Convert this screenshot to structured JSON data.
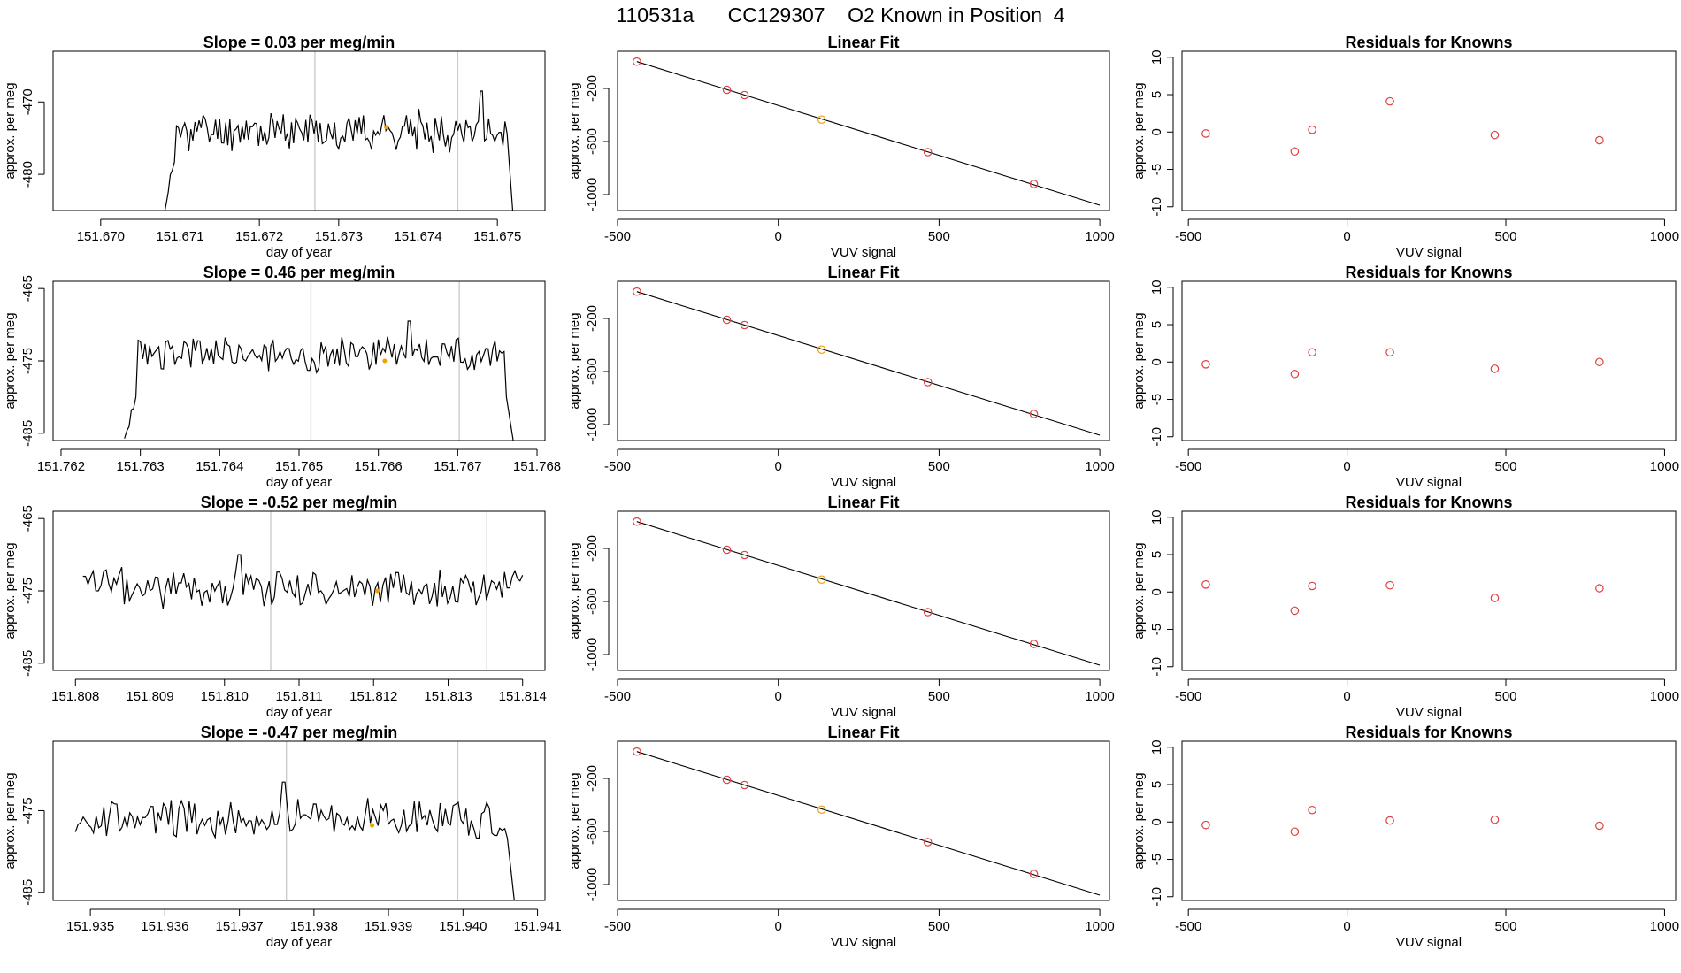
{
  "figure_title": "110531a      CC129307    O2 Known in Position  4",
  "colors": {
    "line": "#000000",
    "vline": "#cccccc",
    "known_point": "#e04040",
    "highlight_point": "#f0a000",
    "axis": "#000000"
  },
  "chart_data": [
    {
      "type": "line",
      "row": 0,
      "col": 0,
      "title": "Slope =  0.03  per meg/min",
      "xlabel": "day of year",
      "ylabel": "approx. per meg",
      "xlim": [
        151.6694,
        151.6756
      ],
      "ylim": [
        -485,
        -463
      ],
      "xticks": [
        151.67,
        151.671,
        151.672,
        151.673,
        151.674,
        151.675
      ],
      "xtick_labels": [
        "151.670",
        "151.671",
        "151.672",
        "151.673",
        "151.674",
        "151.675"
      ],
      "yticks": [
        -480,
        -470
      ],
      "ytick_labels": [
        "-480",
        "-470"
      ],
      "vlines": [
        151.6727,
        151.6745
      ],
      "x_start": 151.6708,
      "x_end": 151.6752,
      "y_mean": -474.0,
      "amp": 2.2,
      "seed": 11,
      "ramp_in": [
        -485,
        -476.5
      ],
      "ramp_out": [
        -470.5,
        -486
      ],
      "peaks": [
        [
          151.6748,
          -468.5
        ]
      ],
      "highlight": [
        151.6736,
        -473.5
      ]
    },
    {
      "type": "scatter",
      "row": 0,
      "col": 1,
      "title": "Linear Fit",
      "xlabel": "VUV signal",
      "ylabel": "approx. per meg",
      "xlim": [
        -500,
        1030
      ],
      "ylim": [
        -1120,
        80
      ],
      "xticks": [
        -500,
        0,
        500,
        1000
      ],
      "xtick_labels": [
        "-500",
        "0",
        "500",
        "1000"
      ],
      "yticks": [
        -1000,
        -600,
        -200
      ],
      "ytick_labels": [
        "-1000",
        "-600",
        "-200"
      ],
      "fit_line": {
        "x": [
          -440,
          1000
        ],
        "y": [
          2,
          -1080
        ]
      },
      "points": [
        [
          -440,
          2
        ],
        [
          -160,
          -210
        ],
        [
          -105,
          -250
        ],
        [
          135,
          -435
        ],
        [
          465,
          -680
        ],
        [
          795,
          -920
        ]
      ],
      "highlight_index": 3
    },
    {
      "type": "scatter",
      "row": 0,
      "col": 2,
      "title": "Residuals for Knowns",
      "xlabel": "VUV signal",
      "ylabel": "approx. per meg",
      "xlim": [
        -520,
        1035
      ],
      "ylim": [
        -10.5,
        10.8
      ],
      "xticks": [
        -500,
        0,
        500,
        1000
      ],
      "xtick_labels": [
        "-500",
        "0",
        "500",
        "1000"
      ],
      "yticks": [
        -10,
        -5,
        0,
        5,
        10
      ],
      "ytick_labels": [
        "-10",
        "-5",
        "0",
        "5",
        "10"
      ],
      "points": [
        [
          -445,
          -0.2
        ],
        [
          -165,
          -2.6
        ],
        [
          -110,
          0.3
        ],
        [
          135,
          4.1
        ],
        [
          465,
          -0.4
        ],
        [
          795,
          -1.1
        ]
      ]
    },
    {
      "type": "line",
      "row": 1,
      "col": 0,
      "title": "Slope =  0.46  per meg/min",
      "xlabel": "day of year",
      "ylabel": "approx. per meg",
      "xlim": [
        151.7619,
        151.7681
      ],
      "ylim": [
        -486,
        -464
      ],
      "xticks": [
        151.762,
        151.763,
        151.764,
        151.765,
        151.766,
        151.767,
        151.768
      ],
      "xtick_labels": [
        "151.762",
        "151.763",
        "151.764",
        "151.765",
        "151.766",
        "151.767",
        "151.768"
      ],
      "yticks": [
        -485,
        -475,
        -465
      ],
      "ytick_labels": [
        "-485",
        "-475",
        "-465"
      ],
      "vlines": [
        151.76515,
        151.76702
      ],
      "x_start": 151.7628,
      "x_end": 151.7677,
      "y_mean": -474.0,
      "amp": 2.0,
      "seed": 23,
      "ramp_in": [
        -486,
        -478.5
      ],
      "ramp_out": [
        -478,
        -486
      ],
      "peaks": [
        [
          151.7664,
          -469.5
        ]
      ],
      "highlight": [
        151.76608,
        -475
      ]
    },
    {
      "type": "scatter",
      "row": 1,
      "col": 1,
      "title": "Linear Fit",
      "xlabel": "VUV signal",
      "ylabel": "approx. per meg",
      "xlim": [
        -500,
        1030
      ],
      "ylim": [
        -1120,
        80
      ],
      "xticks": [
        -500,
        0,
        500,
        1000
      ],
      "xtick_labels": [
        "-500",
        "0",
        "500",
        "1000"
      ],
      "yticks": [
        -1000,
        -600,
        -200
      ],
      "ytick_labels": [
        "-1000",
        "-600",
        "-200"
      ],
      "fit_line": {
        "x": [
          -440,
          1000
        ],
        "y": [
          2,
          -1080
        ]
      },
      "points": [
        [
          -440,
          2
        ],
        [
          -160,
          -210
        ],
        [
          -105,
          -250
        ],
        [
          135,
          -435
        ],
        [
          465,
          -680
        ],
        [
          795,
          -920
        ]
      ],
      "highlight_index": 3
    },
    {
      "type": "scatter",
      "row": 1,
      "col": 2,
      "title": "Residuals for Knowns",
      "xlabel": "VUV signal",
      "ylabel": "approx. per meg",
      "xlim": [
        -520,
        1035
      ],
      "ylim": [
        -10.5,
        10.8
      ],
      "xticks": [
        -500,
        0,
        500,
        1000
      ],
      "xtick_labels": [
        "-500",
        "0",
        "500",
        "1000"
      ],
      "yticks": [
        -10,
        -5,
        0,
        5,
        10
      ],
      "ytick_labels": [
        "-10",
        "-5",
        "0",
        "5",
        "10"
      ],
      "points": [
        [
          -445,
          -0.3
        ],
        [
          -165,
          -1.6
        ],
        [
          -110,
          1.3
        ],
        [
          135,
          1.3
        ],
        [
          465,
          -0.9
        ],
        [
          795,
          0.0
        ]
      ]
    },
    {
      "type": "line",
      "row": 2,
      "col": 0,
      "title": "Slope =  -0.52  per meg/min",
      "xlabel": "day of year",
      "ylabel": "approx. per meg",
      "xlim": [
        151.8077,
        151.8143
      ],
      "ylim": [
        -486,
        -464
      ],
      "xticks": [
        151.808,
        151.809,
        151.81,
        151.811,
        151.812,
        151.813,
        151.814
      ],
      "xtick_labels": [
        "151.808",
        "151.809",
        "151.810",
        "151.811",
        "151.812",
        "151.813",
        "151.814"
      ],
      "yticks": [
        -485,
        -475,
        -465
      ],
      "ytick_labels": [
        "-485",
        "-475",
        "-465"
      ],
      "vlines": [
        151.81062,
        151.81352
      ],
      "x_start": 151.8081,
      "x_end": 151.814,
      "y_mean": -474.5,
      "amp": 2.3,
      "seed": 37,
      "ramp_in": null,
      "ramp_out": null,
      "peaks": [
        [
          151.8102,
          -470.0
        ]
      ],
      "highlight": [
        151.81205,
        -475
      ]
    },
    {
      "type": "scatter",
      "row": 2,
      "col": 1,
      "title": "Linear Fit",
      "xlabel": "VUV signal",
      "ylabel": "approx. per meg",
      "xlim": [
        -500,
        1030
      ],
      "ylim": [
        -1120,
        80
      ],
      "xticks": [
        -500,
        0,
        500,
        1000
      ],
      "xtick_labels": [
        "-500",
        "0",
        "500",
        "1000"
      ],
      "yticks": [
        -1000,
        -600,
        -200
      ],
      "ytick_labels": [
        "-1000",
        "-600",
        "-200"
      ],
      "fit_line": {
        "x": [
          -440,
          1000
        ],
        "y": [
          2,
          -1080
        ]
      },
      "points": [
        [
          -440,
          2
        ],
        [
          -160,
          -210
        ],
        [
          -105,
          -250
        ],
        [
          135,
          -435
        ],
        [
          465,
          -680
        ],
        [
          795,
          -920
        ]
      ],
      "highlight_index": 3
    },
    {
      "type": "scatter",
      "row": 2,
      "col": 2,
      "title": "Residuals for Knowns",
      "xlabel": "VUV signal",
      "ylabel": "approx. per meg",
      "xlim": [
        -520,
        1035
      ],
      "ylim": [
        -10.5,
        10.8
      ],
      "xticks": [
        -500,
        0,
        500,
        1000
      ],
      "xtick_labels": [
        "-500",
        "0",
        "500",
        "1000"
      ],
      "yticks": [
        -10,
        -5,
        0,
        5,
        10
      ],
      "ytick_labels": [
        "-10",
        "-5",
        "0",
        "5",
        "10"
      ],
      "points": [
        [
          -445,
          1.0
        ],
        [
          -165,
          -2.5
        ],
        [
          -110,
          0.8
        ],
        [
          135,
          0.9
        ],
        [
          465,
          -0.8
        ],
        [
          795,
          0.5
        ]
      ]
    },
    {
      "type": "line",
      "row": 3,
      "col": 0,
      "title": "Slope =  -0.47  per meg/min",
      "xlabel": "day of year",
      "ylabel": "approx. per meg",
      "xlim": [
        151.9345,
        151.9411
      ],
      "ylim": [
        -486,
        -466.5
      ],
      "xticks": [
        151.935,
        151.936,
        151.937,
        151.938,
        151.939,
        151.94,
        151.941
      ],
      "xtick_labels": [
        "151.935",
        "151.936",
        "151.937",
        "151.938",
        "151.939",
        "151.940",
        "151.941"
      ],
      "yticks": [
        -485,
        -475
      ],
      "ytick_labels": [
        "-485",
        "-475"
      ],
      "vlines": [
        151.93763,
        151.93993
      ],
      "x_start": 151.9348,
      "x_end": 151.9407,
      "y_mean": -476.0,
      "amp": 2.0,
      "seed": 53,
      "ramp_in": null,
      "ramp_out": [
        -475.5,
        -487
      ],
      "peaks": [
        [
          151.9376,
          -471.5
        ]
      ],
      "highlight": [
        151.93878,
        -476.8
      ]
    },
    {
      "type": "scatter",
      "row": 3,
      "col": 1,
      "title": "Linear Fit",
      "xlabel": "VUV signal",
      "ylabel": "approx. per meg",
      "xlim": [
        -500,
        1030
      ],
      "ylim": [
        -1120,
        80
      ],
      "xticks": [
        -500,
        0,
        500,
        1000
      ],
      "xtick_labels": [
        "-500",
        "0",
        "500",
        "1000"
      ],
      "yticks": [
        -1000,
        -600,
        -200
      ],
      "ytick_labels": [
        "-1000",
        "-600",
        "-200"
      ],
      "fit_line": {
        "x": [
          -440,
          1000
        ],
        "y": [
          2,
          -1080
        ]
      },
      "points": [
        [
          -440,
          2
        ],
        [
          -160,
          -210
        ],
        [
          -105,
          -250
        ],
        [
          135,
          -435
        ],
        [
          465,
          -680
        ],
        [
          795,
          -920
        ]
      ],
      "highlight_index": 3
    },
    {
      "type": "scatter",
      "row": 3,
      "col": 2,
      "title": "Residuals for Knowns",
      "xlabel": "VUV signal",
      "ylabel": "approx. per meg",
      "xlim": [
        -520,
        1035
      ],
      "ylim": [
        -10.5,
        10.8
      ],
      "xticks": [
        -500,
        0,
        500,
        1000
      ],
      "xtick_labels": [
        "-500",
        "0",
        "500",
        "1000"
      ],
      "yticks": [
        -10,
        -5,
        0,
        5,
        10
      ],
      "ytick_labels": [
        "-10",
        "-5",
        "0",
        "5",
        "10"
      ],
      "points": [
        [
          -445,
          -0.4
        ],
        [
          -165,
          -1.3
        ],
        [
          -110,
          1.6
        ],
        [
          135,
          0.2
        ],
        [
          465,
          0.3
        ],
        [
          795,
          -0.5
        ]
      ]
    }
  ]
}
